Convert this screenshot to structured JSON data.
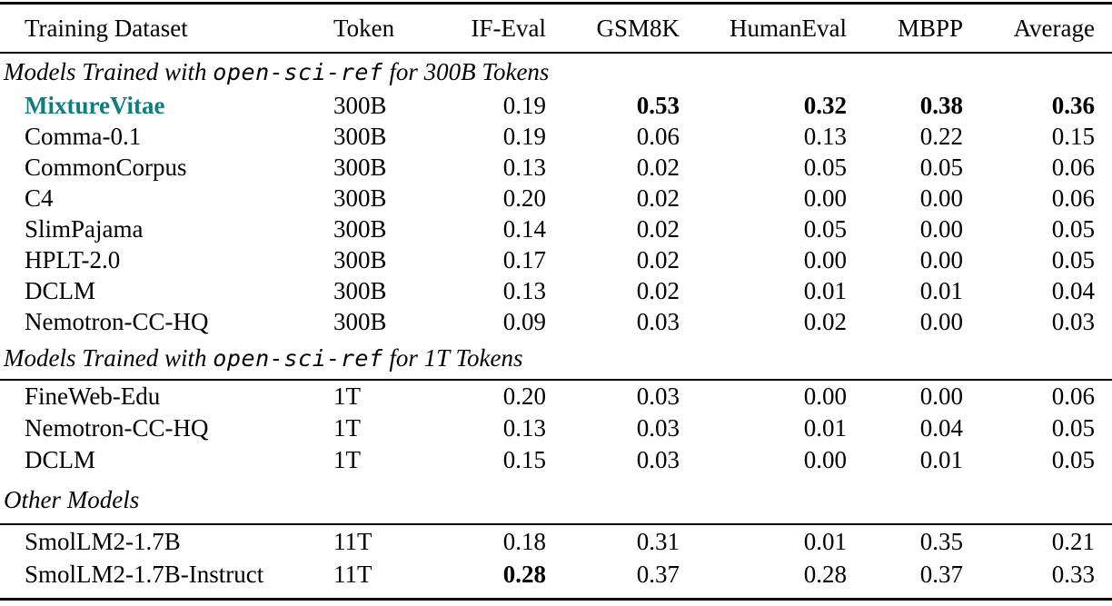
{
  "accent_color": "#0f7e80",
  "table": {
    "columns": [
      "Training Dataset",
      "Tokens",
      "IF-Eval",
      "GSM8K",
      "HumanEval",
      "MBPP",
      "Average"
    ],
    "sections": [
      {
        "heading": {
          "prefix": "Models Trained with ",
          "code": "open-sci-ref",
          "suffix": " for 300B Tokens"
        },
        "rule_below_heading": false,
        "rows": [
          {
            "dataset": "MixtureVitae",
            "highlight": true,
            "tokens": "300B",
            "values": [
              "0.19",
              "0.53",
              "0.32",
              "0.38",
              "0.36"
            ],
            "bold": [
              false,
              true,
              true,
              true,
              true
            ]
          },
          {
            "dataset": "Comma-0.1",
            "highlight": false,
            "tokens": "300B",
            "values": [
              "0.19",
              "0.06",
              "0.13",
              "0.22",
              "0.15"
            ],
            "bold": [
              false,
              false,
              false,
              false,
              false
            ]
          },
          {
            "dataset": "CommonCorpus",
            "highlight": false,
            "tokens": "300B",
            "values": [
              "0.13",
              "0.02",
              "0.05",
              "0.05",
              "0.06"
            ],
            "bold": [
              false,
              false,
              false,
              false,
              false
            ]
          },
          {
            "dataset": "C4",
            "highlight": false,
            "tokens": "300B",
            "values": [
              "0.20",
              "0.02",
              "0.00",
              "0.00",
              "0.06"
            ],
            "bold": [
              false,
              false,
              false,
              false,
              false
            ]
          },
          {
            "dataset": "SlimPajama",
            "highlight": false,
            "tokens": "300B",
            "values": [
              "0.14",
              "0.02",
              "0.05",
              "0.00",
              "0.05"
            ],
            "bold": [
              false,
              false,
              false,
              false,
              false
            ]
          },
          {
            "dataset": "HPLT-2.0",
            "highlight": false,
            "tokens": "300B",
            "values": [
              "0.17",
              "0.02",
              "0.00",
              "0.00",
              "0.05"
            ],
            "bold": [
              false,
              false,
              false,
              false,
              false
            ]
          },
          {
            "dataset": "DCLM",
            "highlight": false,
            "tokens": "300B",
            "values": [
              "0.13",
              "0.02",
              "0.01",
              "0.01",
              "0.04"
            ],
            "bold": [
              false,
              false,
              false,
              false,
              false
            ]
          },
          {
            "dataset": "Nemotron-CC-HQ",
            "highlight": false,
            "tokens": "300B",
            "values": [
              "0.09",
              "0.03",
              "0.02",
              "0.00",
              "0.03"
            ],
            "bold": [
              false,
              false,
              false,
              false,
              false
            ]
          }
        ]
      },
      {
        "heading": {
          "prefix": "Models Trained with ",
          "code": "open-sci-ref",
          "suffix": " for 1T Tokens"
        },
        "rule_below_heading": true,
        "rows": [
          {
            "dataset": "FineWeb-Edu",
            "highlight": false,
            "tokens": "1T",
            "values": [
              "0.20",
              "0.03",
              "0.00",
              "0.00",
              "0.06"
            ],
            "bold": [
              false,
              false,
              false,
              false,
              false
            ]
          },
          {
            "dataset": "Nemotron-CC-HQ",
            "highlight": false,
            "tokens": "1T",
            "values": [
              "0.13",
              "0.03",
              "0.01",
              "0.04",
              "0.05"
            ],
            "bold": [
              false,
              false,
              false,
              false,
              false
            ]
          },
          {
            "dataset": "DCLM",
            "highlight": false,
            "tokens": "1T",
            "values": [
              "0.15",
              "0.03",
              "0.00",
              "0.01",
              "0.05"
            ],
            "bold": [
              false,
              false,
              false,
              false,
              false
            ]
          }
        ]
      },
      {
        "heading": {
          "prefix": "Other Models",
          "code": "",
          "suffix": ""
        },
        "rule_below_heading": true,
        "rows": [
          {
            "dataset": "SmolLM2-1.7B",
            "highlight": false,
            "tokens": "11T",
            "values": [
              "0.18",
              "0.31",
              "0.01",
              "0.35",
              "0.21"
            ],
            "bold": [
              false,
              false,
              false,
              false,
              false
            ]
          },
          {
            "dataset": "SmolLM2-1.7B-Instruct",
            "highlight": false,
            "tokens": "11T",
            "values": [
              "0.28",
              "0.37",
              "0.28",
              "0.37",
              "0.33"
            ],
            "bold": [
              true,
              false,
              false,
              false,
              false
            ]
          }
        ]
      }
    ]
  }
}
